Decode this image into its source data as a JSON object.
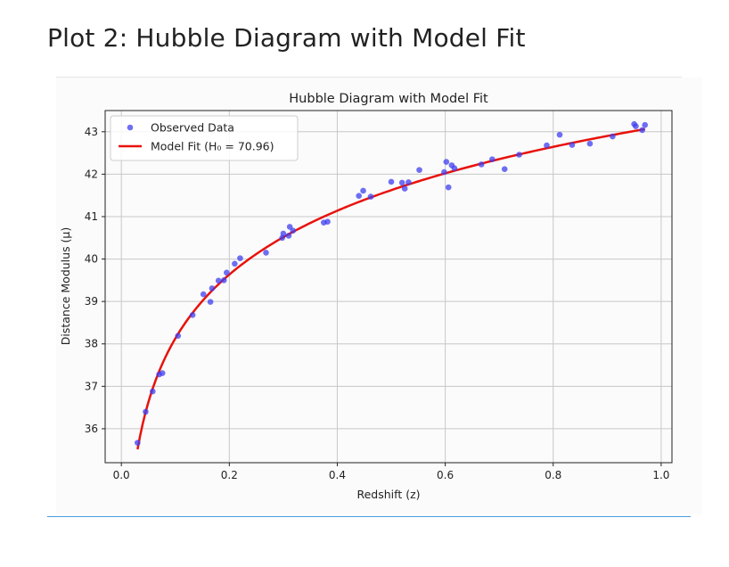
{
  "page": {
    "heading": "Plot 2: Hubble Diagram with Model Fit"
  },
  "colors": {
    "observed": "#3f3ff0",
    "fit": "#e8120c",
    "grid": "#c8c8c8",
    "rule": "#4a9be0"
  },
  "chart_data": {
    "type": "scatter",
    "title": "Hubble Diagram with Model Fit",
    "xlabel": "Redshift (z)",
    "ylabel": "Distance Modulus (μ)",
    "xlim": [
      -0.03,
      1.02
    ],
    "ylim": [
      35.2,
      43.5
    ],
    "xticks": [
      0.0,
      0.2,
      0.4,
      0.6,
      0.8,
      1.0
    ],
    "xtick_labels": [
      "0.0",
      "0.2",
      "0.4",
      "0.6",
      "0.8",
      "1.0"
    ],
    "yticks": [
      36,
      37,
      38,
      39,
      40,
      41,
      42,
      43
    ],
    "ytick_labels": [
      "36",
      "37",
      "38",
      "39",
      "40",
      "41",
      "42",
      "43"
    ],
    "grid": true,
    "legend_position": "top-left",
    "legend": [
      "Observed Data",
      "Model Fit (H₀ = 70.96)"
    ],
    "series": [
      {
        "name": "Observed Data",
        "kind": "scatter",
        "color": "#3f3ff0",
        "points": [
          [
            0.03,
            35.67
          ],
          [
            0.045,
            36.4
          ],
          [
            0.058,
            36.88
          ],
          [
            0.07,
            37.28
          ],
          [
            0.076,
            37.31
          ],
          [
            0.105,
            38.19
          ],
          [
            0.132,
            38.68
          ],
          [
            0.152,
            39.17
          ],
          [
            0.165,
            38.99
          ],
          [
            0.168,
            39.31
          ],
          [
            0.18,
            39.49
          ],
          [
            0.19,
            39.5
          ],
          [
            0.195,
            39.68
          ],
          [
            0.21,
            39.89
          ],
          [
            0.22,
            40.02
          ],
          [
            0.268,
            40.15
          ],
          [
            0.298,
            40.5
          ],
          [
            0.3,
            40.6
          ],
          [
            0.31,
            40.55
          ],
          [
            0.312,
            40.76
          ],
          [
            0.318,
            40.67
          ],
          [
            0.375,
            40.86
          ],
          [
            0.382,
            40.88
          ],
          [
            0.44,
            41.49
          ],
          [
            0.448,
            41.61
          ],
          [
            0.462,
            41.47
          ],
          [
            0.5,
            41.82
          ],
          [
            0.52,
            41.8
          ],
          [
            0.525,
            41.66
          ],
          [
            0.532,
            41.81
          ],
          [
            0.552,
            42.1
          ],
          [
            0.598,
            42.05
          ],
          [
            0.602,
            42.29
          ],
          [
            0.606,
            41.69
          ],
          [
            0.612,
            42.21
          ],
          [
            0.617,
            42.14
          ],
          [
            0.667,
            42.23
          ],
          [
            0.687,
            42.35
          ],
          [
            0.71,
            42.12
          ],
          [
            0.737,
            42.46
          ],
          [
            0.788,
            42.68
          ],
          [
            0.812,
            42.93
          ],
          [
            0.835,
            42.69
          ],
          [
            0.868,
            42.72
          ],
          [
            0.91,
            42.89
          ],
          [
            0.95,
            43.18
          ],
          [
            0.953,
            43.13
          ],
          [
            0.965,
            43.04
          ],
          [
            0.97,
            43.16
          ]
        ]
      },
      {
        "name": "Model Fit (H₀ = 70.96)",
        "kind": "line",
        "color": "#e8120c",
        "H0": 70.96,
        "x_range": [
          0.03,
          0.97
        ]
      }
    ]
  }
}
